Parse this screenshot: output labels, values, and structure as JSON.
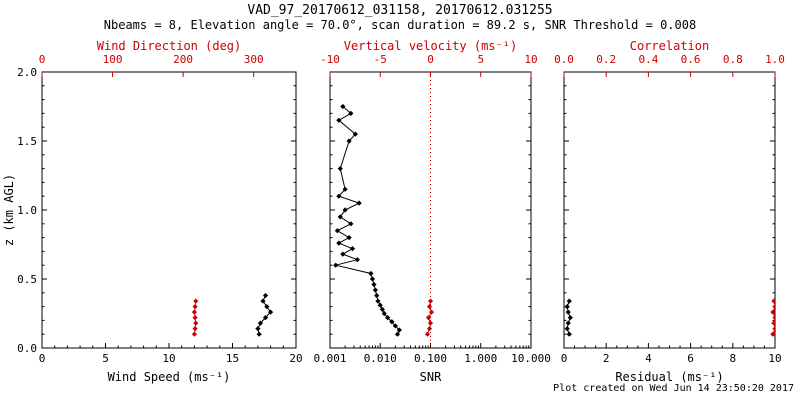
{
  "header": {
    "title": "VAD_97_20170612_031158, 20170612.031255",
    "subtitle": "Nbeams = 8, Elevation angle = 70.0°, scan duration = 89.2 s, SNR Threshold = 0.008"
  },
  "footer": {
    "created": "Plot created on Wed Jun 14 23:50:20 2017"
  },
  "colors": {
    "axis": "#000000",
    "accent_red": "#cc0000",
    "background": "#ffffff"
  },
  "y_axis": {
    "label": "z (km AGL)",
    "range": [
      0,
      2
    ],
    "ticks": [
      0,
      0.5,
      1,
      1.5,
      2
    ],
    "tick_labels": [
      "0.0",
      "0.5",
      "1.0",
      "1.5",
      "2.0"
    ],
    "minor_step": 0.1
  },
  "chart_data": [
    {
      "type": "line",
      "bottom_axis": {
        "label": "Wind Speed (ms⁻¹)",
        "scale": "linear",
        "range": [
          0,
          20
        ],
        "ticks": [
          0,
          5,
          10,
          15,
          20
        ],
        "tick_labels": [
          "0",
          "5",
          "10",
          "15",
          "20"
        ],
        "minor_step": 1
      },
      "top_axis": {
        "label": "Wind Direction (deg)",
        "scale": "linear",
        "range": [
          0,
          360
        ],
        "ticks": [
          0,
          100,
          200,
          300
        ],
        "tick_labels": [
          "0",
          "100",
          "200",
          "300"
        ]
      },
      "series": [
        {
          "name": "wind-speed",
          "color": "black",
          "axis": "bottom",
          "points": [
            [
              17.1,
              0.1
            ],
            [
              17.0,
              0.14
            ],
            [
              17.2,
              0.18
            ],
            [
              17.6,
              0.22
            ],
            [
              18.0,
              0.26
            ],
            [
              17.7,
              0.3
            ],
            [
              17.4,
              0.34
            ],
            [
              17.6,
              0.38
            ]
          ]
        },
        {
          "name": "wind-direction",
          "color": "red",
          "axis": "top",
          "points": [
            [
              216,
              0.1
            ],
            [
              217,
              0.14
            ],
            [
              218,
              0.18
            ],
            [
              217,
              0.22
            ],
            [
              216,
              0.26
            ],
            [
              217,
              0.3
            ],
            [
              218,
              0.34
            ]
          ]
        }
      ]
    },
    {
      "type": "line",
      "refline_top": 0,
      "bottom_axis": {
        "label": "SNR",
        "scale": "log",
        "range": [
          0.001,
          10
        ],
        "ticks": [
          0.001,
          0.01,
          0.1,
          1,
          10
        ],
        "tick_labels": [
          "0.001",
          "0.010",
          "0.100",
          "1.000",
          "10.000"
        ]
      },
      "top_axis": {
        "label": "Vertical velocity (ms⁻¹)",
        "scale": "linear",
        "range": [
          -10,
          10
        ],
        "ticks": [
          -10,
          -5,
          0,
          5,
          10
        ],
        "tick_labels": [
          "-10",
          "-5",
          "0",
          "5",
          "10"
        ]
      },
      "series": [
        {
          "name": "snr",
          "color": "black",
          "axis": "bottom",
          "points": [
            [
              0.022,
              0.1
            ],
            [
              0.024,
              0.13
            ],
            [
              0.02,
              0.16
            ],
            [
              0.017,
              0.19
            ],
            [
              0.014,
              0.22
            ],
            [
              0.012,
              0.25
            ],
            [
              0.011,
              0.28
            ],
            [
              0.01,
              0.31
            ],
            [
              0.009,
              0.34
            ],
            [
              0.0085,
              0.38
            ],
            [
              0.008,
              0.42
            ],
            [
              0.0075,
              0.46
            ],
            [
              0.007,
              0.5
            ],
            [
              0.0065,
              0.54
            ],
            [
              0.0013,
              0.6
            ],
            [
              0.0035,
              0.64
            ],
            [
              0.0018,
              0.68
            ],
            [
              0.0028,
              0.72
            ],
            [
              0.0015,
              0.76
            ],
            [
              0.0024,
              0.8
            ],
            [
              0.0014,
              0.85
            ],
            [
              0.0026,
              0.9
            ],
            [
              0.0016,
              0.95
            ],
            [
              0.002,
              1.0
            ],
            [
              0.0038,
              1.05
            ],
            [
              0.0015,
              1.1
            ],
            [
              0.002,
              1.15
            ],
            [
              0.0016,
              1.3
            ],
            [
              0.0024,
              1.5
            ],
            [
              0.0032,
              1.55
            ],
            [
              0.0015,
              1.65
            ],
            [
              0.0026,
              1.7
            ],
            [
              0.0018,
              1.75
            ]
          ]
        },
        {
          "name": "vertical-velocity",
          "color": "red",
          "axis": "top",
          "points": [
            [
              -0.3,
              0.1
            ],
            [
              -0.1,
              0.14
            ],
            [
              0.0,
              0.18
            ],
            [
              -0.2,
              0.22
            ],
            [
              0.1,
              0.26
            ],
            [
              -0.1,
              0.3
            ],
            [
              0.0,
              0.34
            ]
          ]
        }
      ]
    },
    {
      "type": "line",
      "bottom_axis": {
        "label": "Residual (ms⁻¹)",
        "scale": "linear",
        "range": [
          0,
          10
        ],
        "ticks": [
          0,
          2,
          4,
          6,
          8,
          10
        ],
        "tick_labels": [
          "0",
          "2",
          "4",
          "6",
          "8",
          "10"
        ],
        "minor_step": 0.5
      },
      "top_axis": {
        "label": "Correlation",
        "scale": "linear",
        "range": [
          0,
          1
        ],
        "ticks": [
          0,
          0.2,
          0.4,
          0.6,
          0.8,
          1
        ],
        "tick_labels": [
          "0.0",
          "0.2",
          "0.4",
          "0.6",
          "0.8",
          "1.0"
        ]
      },
      "series": [
        {
          "name": "residual",
          "color": "black",
          "axis": "bottom",
          "points": [
            [
              0.25,
              0.1
            ],
            [
              0.15,
              0.14
            ],
            [
              0.2,
              0.18
            ],
            [
              0.3,
              0.22
            ],
            [
              0.2,
              0.26
            ],
            [
              0.15,
              0.3
            ],
            [
              0.25,
              0.34
            ]
          ]
        },
        {
          "name": "correlation",
          "color": "red",
          "axis": "top",
          "points": [
            [
              0.99,
              0.1
            ],
            [
              1.0,
              0.14
            ],
            [
              0.995,
              0.18
            ],
            [
              1.0,
              0.22
            ],
            [
              0.99,
              0.26
            ],
            [
              1.0,
              0.3
            ],
            [
              0.995,
              0.34
            ]
          ]
        }
      ]
    }
  ]
}
